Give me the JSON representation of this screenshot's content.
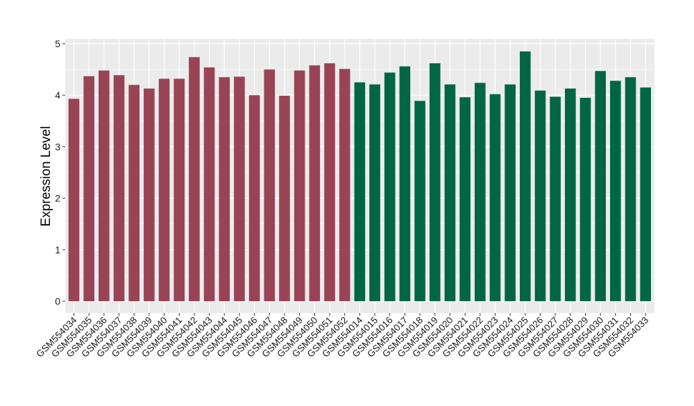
{
  "chart_data": {
    "type": "bar",
    "title": "",
    "xlabel": "",
    "ylabel": "Expression Level",
    "ylim": [
      0,
      5
    ],
    "yticks": [
      0,
      1,
      2,
      3,
      4,
      5
    ],
    "grid": true,
    "background": "#EBEBEB",
    "grid_color": "#FFFFFF",
    "categories": [
      "GSM554034",
      "GSM554035",
      "GSM554036",
      "GSM554037",
      "GSM554038",
      "GSM554039",
      "GSM554040",
      "GSM554041",
      "GSM554042",
      "GSM554043",
      "GSM554044",
      "GSM554045",
      "GSM554046",
      "GSM554047",
      "GSM554048",
      "GSM554049",
      "GSM554050",
      "GSM554051",
      "GSM554052",
      "GSM554014",
      "GSM554015",
      "GSM554016",
      "GSM554017",
      "GSM554018",
      "GSM554019",
      "GSM554020",
      "GSM554021",
      "GSM554022",
      "GSM554023",
      "GSM554024",
      "GSM554025",
      "GSM554026",
      "GSM554027",
      "GSM554028",
      "GSM554029",
      "GSM554030",
      "GSM554031",
      "GSM554032",
      "GSM554033"
    ],
    "values": [
      3.93,
      4.37,
      4.48,
      4.39,
      4.2,
      4.13,
      4.32,
      4.32,
      4.74,
      4.54,
      4.35,
      4.36,
      4.0,
      4.5,
      3.99,
      4.48,
      4.58,
      4.62,
      4.51,
      4.25,
      4.21,
      4.44,
      4.56,
      3.89,
      4.62,
      4.21,
      3.96,
      4.24,
      4.02,
      4.21,
      4.85,
      4.09,
      3.97,
      4.13,
      3.95,
      4.47,
      4.28,
      4.35,
      4.15
    ],
    "bar_colors": [
      "#994455",
      "#994455",
      "#994455",
      "#994455",
      "#994455",
      "#994455",
      "#994455",
      "#994455",
      "#994455",
      "#994455",
      "#994455",
      "#994455",
      "#994455",
      "#994455",
      "#994455",
      "#994455",
      "#994455",
      "#994455",
      "#994455",
      "#006644",
      "#006644",
      "#006644",
      "#006644",
      "#006644",
      "#006644",
      "#006644",
      "#006644",
      "#006644",
      "#006644",
      "#006644",
      "#006644",
      "#006644",
      "#006644",
      "#006644",
      "#006644",
      "#006644",
      "#006644",
      "#006644",
      "#006644"
    ]
  }
}
